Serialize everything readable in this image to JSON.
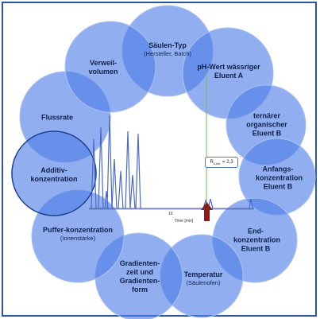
{
  "nodes": [
    {
      "id": "saeulen-typ",
      "title": "Säulen-Typ",
      "sub": "(Hersteller, Batch)"
    },
    {
      "id": "ph-wert",
      "title": "pH-Wert wässriger Eluent A",
      "sub": ""
    },
    {
      "id": "ternaerer",
      "title": "ternärer organischer Eluent B",
      "sub": ""
    },
    {
      "id": "anfangs",
      "title": "Anfangs-konzentration Eluent B",
      "sub": ""
    },
    {
      "id": "end",
      "title": "End-konzentration Eluent B",
      "sub": ""
    },
    {
      "id": "temperatur",
      "title": "Temperatur",
      "sub": "(Säulenofen)"
    },
    {
      "id": "gradienten",
      "title": "Gradienten-zeit und Gradienten-form",
      "sub": ""
    },
    {
      "id": "puffer",
      "title": "Puffer-konzentration",
      "sub": "(Ionenstärke)"
    },
    {
      "id": "additiv",
      "title": "Additiv-konzentration",
      "sub": ""
    },
    {
      "id": "flussrate",
      "title": "Flussrate",
      "sub": ""
    },
    {
      "id": "verweil",
      "title": "Verweil-volumen",
      "sub": ""
    }
  ],
  "chromatogram": {
    "resolution_label": "R",
    "resolution_sub": "s,krit.",
    "resolution_value": "= 2,3",
    "x_axis_label": "Time [min]",
    "tick_label": "10",
    "accent_color": "#8b1a1a",
    "line_color": "#4a6ac8"
  },
  "colors": {
    "bubble": "#4d7ee6",
    "frame": "#2a55a8",
    "text": "#10204a"
  }
}
